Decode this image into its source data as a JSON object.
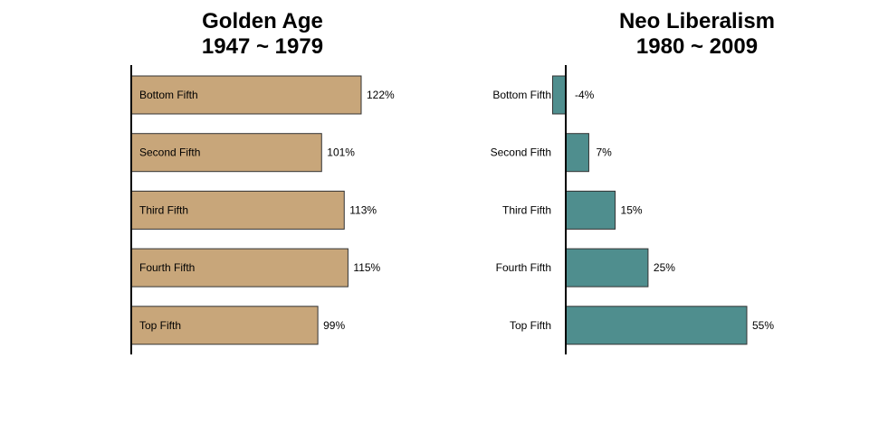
{
  "chart_data": [
    {
      "type": "bar",
      "orientation": "horizontal",
      "title": "Golden Age",
      "subtitle": "1947 ~ 1979",
      "categories": [
        "Bottom Fifth",
        "Second Fifth",
        "Third Fifth",
        "Fourth Fifth",
        "Top Fifth"
      ],
      "values": [
        122,
        101,
        113,
        115,
        99
      ],
      "value_labels": [
        "122%",
        "101%",
        "113%",
        "115%",
        "99%"
      ],
      "unit": "%",
      "xlim": [
        0,
        122
      ],
      "bar_color": "#c8a67a",
      "grid": false,
      "legend": "none",
      "category_label_position": "inside"
    },
    {
      "type": "bar",
      "orientation": "horizontal",
      "title": "Neo Liberalism",
      "subtitle": "1980 ~ 2009",
      "categories": [
        "Bottom Fifth",
        "Second Fifth",
        "Third Fifth",
        "Fourth Fifth",
        "Top Fifth"
      ],
      "values": [
        -4,
        7,
        15,
        25,
        55
      ],
      "value_labels": [
        "-4%",
        "7%",
        "15%",
        "25%",
        "55%"
      ],
      "unit": "%",
      "xlim": [
        -4,
        55
      ],
      "bar_color": "#4f8e8e",
      "grid": false,
      "legend": "none",
      "category_label_position": "outside"
    }
  ]
}
